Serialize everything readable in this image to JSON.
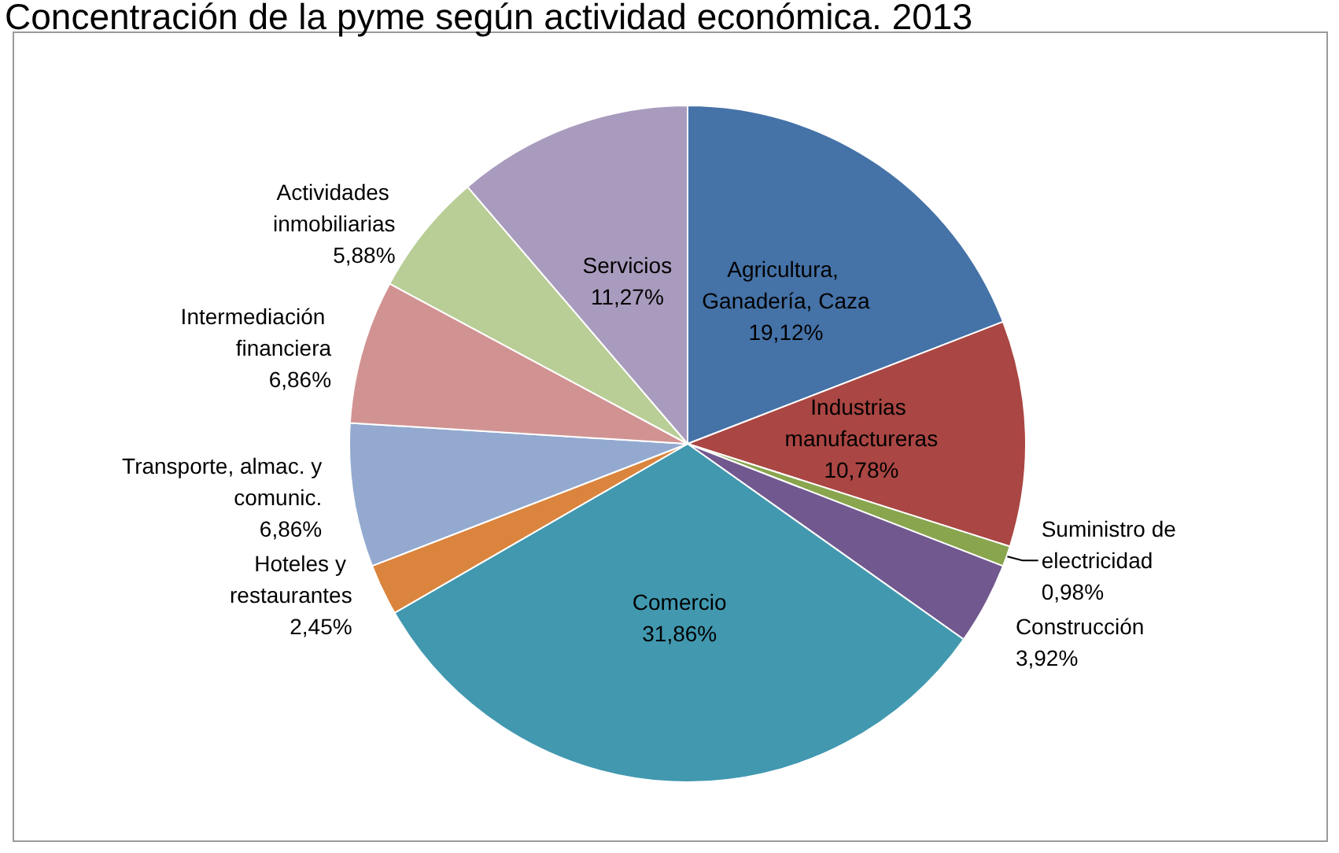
{
  "chart_data": {
    "type": "pie",
    "title": "Concentración de la pyme según actividad económica. 2013",
    "categories": [
      "Agricultura, Ganadería, Caza",
      "Industrias manufactureras",
      "Suministro de electricidad",
      "Construcción",
      "Comercio",
      "Hoteles y restaurantes",
      "Transporte, almac. y comunic.",
      "Intermediación financiera",
      "Actividades inmobiliarias",
      "Servicios"
    ],
    "values": [
      19.12,
      10.78,
      0.98,
      3.92,
      31.86,
      2.45,
      6.86,
      6.86,
      5.88,
      11.27
    ],
    "colors": [
      "#4572a7",
      "#aa4643",
      "#89a54e",
      "#71588f",
      "#4198af",
      "#db843d",
      "#93a9cf",
      "#d19392",
      "#b9cd96",
      "#a99bbd"
    ],
    "value_labels": [
      "19,12%",
      "10,78%",
      "0,98%",
      "3,92%",
      "31,86%",
      "2,45%",
      "6,86%",
      "6,86%",
      "5,88%",
      "11,27%"
    ],
    "legend": false
  }
}
